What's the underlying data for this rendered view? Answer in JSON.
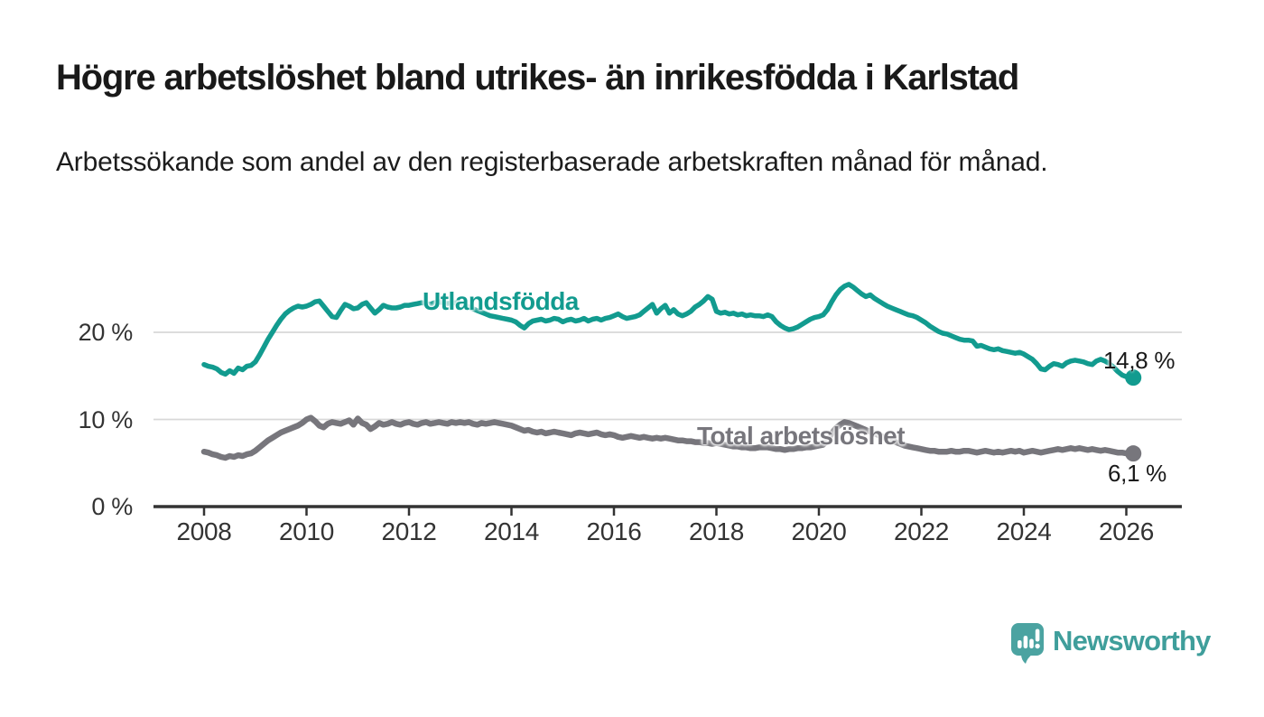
{
  "header": {
    "title": "Högre arbetslöshet bland utrikes- än inrikesfödda i Karlstad",
    "subtitle": "Arbetssökande som andel av den registerbaserade arbetskraften månad för månad."
  },
  "chart_data": {
    "type": "line",
    "title": "Högre arbetslöshet bland utrikes- än inrikesfödda i Karlstad",
    "xlabel": "",
    "ylabel": "Arbetssökande som andel av den registerbaserade arbetskraften",
    "x_start_year": 2008,
    "x_interval_months": 1,
    "x_tick_labels": [
      "2008",
      "2010",
      "2012",
      "2014",
      "2016",
      "2018",
      "2020",
      "2022",
      "2024",
      "2026"
    ],
    "y_ticks": [
      0,
      10,
      20
    ],
    "y_tick_labels": [
      "0 %",
      "10 %",
      "20 %"
    ],
    "ylim": [
      0,
      27.5
    ],
    "grid": "horizontal-only",
    "gridline_color": "#d8d8d8",
    "axis_color": "#333333",
    "legend_position": "inline-labels",
    "series": [
      {
        "name": "Utlandsfödda",
        "color": "#129b8f",
        "end_label": "14,8 %",
        "end_value": 14.8,
        "values": [
          16.3,
          16.1,
          16.0,
          15.8,
          15.4,
          15.2,
          15.6,
          15.3,
          15.9,
          15.7,
          16.1,
          16.2,
          16.6,
          17.4,
          18.3,
          19.2,
          20.0,
          20.8,
          21.5,
          22.1,
          22.5,
          22.8,
          23.0,
          22.9,
          23.0,
          23.2,
          23.5,
          23.6,
          23.0,
          22.4,
          21.8,
          21.7,
          22.5,
          23.2,
          23.0,
          22.7,
          22.8,
          23.2,
          23.4,
          22.8,
          22.2,
          22.6,
          23.1,
          22.9,
          22.8,
          22.8,
          22.9,
          23.1,
          23.1,
          23.2,
          23.3,
          23.4,
          23.3,
          23.2,
          23.4,
          23.5,
          23.4,
          23.3,
          23.4,
          23.4,
          23.3,
          23.1,
          22.9,
          22.7,
          22.5,
          22.3,
          22.1,
          21.9,
          21.8,
          21.7,
          21.6,
          21.5,
          21.4,
          21.2,
          20.8,
          20.5,
          21.0,
          21.3,
          21.4,
          21.5,
          21.3,
          21.4,
          21.6,
          21.5,
          21.2,
          21.4,
          21.5,
          21.3,
          21.4,
          21.6,
          21.3,
          21.5,
          21.6,
          21.4,
          21.6,
          21.7,
          21.9,
          22.1,
          21.8,
          21.6,
          21.7,
          21.8,
          22.0,
          22.4,
          22.8,
          23.2,
          22.2,
          22.7,
          23.1,
          22.2,
          22.6,
          22.1,
          21.9,
          22.1,
          22.4,
          22.9,
          23.2,
          23.6,
          24.1,
          23.8,
          22.4,
          22.2,
          22.3,
          22.1,
          22.2,
          22.0,
          22.1,
          21.9,
          22.0,
          21.9,
          21.9,
          21.8,
          22.0,
          21.8,
          21.2,
          20.8,
          20.5,
          20.3,
          20.4,
          20.6,
          20.9,
          21.2,
          21.5,
          21.7,
          21.8,
          22.0,
          22.6,
          23.5,
          24.3,
          24.9,
          25.3,
          25.5,
          25.2,
          24.8,
          24.4,
          24.1,
          24.3,
          23.9,
          23.6,
          23.3,
          23.0,
          22.8,
          22.6,
          22.4,
          22.2,
          22.0,
          21.9,
          21.7,
          21.4,
          21.1,
          20.7,
          20.4,
          20.1,
          19.9,
          19.8,
          19.6,
          19.4,
          19.2,
          19.1,
          19.1,
          19.0,
          18.4,
          18.5,
          18.3,
          18.1,
          18.0,
          18.1,
          17.9,
          17.8,
          17.7,
          17.6,
          17.7,
          17.5,
          17.2,
          16.9,
          16.4,
          15.8,
          15.7,
          16.1,
          16.4,
          16.3,
          16.1,
          16.5,
          16.7,
          16.8,
          16.7,
          16.6,
          16.4,
          16.3,
          16.7,
          16.9,
          16.7,
          16.4,
          16.0,
          15.5,
          15.1,
          14.9,
          14.8
        ]
      },
      {
        "name": "Total arbetslöshet",
        "color": "#77767c",
        "end_label": "6,1 %",
        "end_value": 6.1,
        "values": [
          6.3,
          6.2,
          6.0,
          5.9,
          5.7,
          5.6,
          5.8,
          5.7,
          5.9,
          5.8,
          6.0,
          6.1,
          6.4,
          6.8,
          7.2,
          7.6,
          7.9,
          8.2,
          8.5,
          8.7,
          8.9,
          9.1,
          9.3,
          9.6,
          10.0,
          10.2,
          9.8,
          9.3,
          9.1,
          9.5,
          9.7,
          9.6,
          9.5,
          9.7,
          9.9,
          9.4,
          10.1,
          9.6,
          9.4,
          8.9,
          9.2,
          9.6,
          9.4,
          9.5,
          9.7,
          9.5,
          9.4,
          9.6,
          9.7,
          9.5,
          9.4,
          9.6,
          9.7,
          9.5,
          9.6,
          9.7,
          9.6,
          9.5,
          9.7,
          9.6,
          9.7,
          9.6,
          9.7,
          9.5,
          9.4,
          9.6,
          9.5,
          9.6,
          9.7,
          9.6,
          9.5,
          9.4,
          9.3,
          9.1,
          8.9,
          8.7,
          8.8,
          8.6,
          8.5,
          8.6,
          8.4,
          8.5,
          8.6,
          8.5,
          8.4,
          8.3,
          8.2,
          8.4,
          8.5,
          8.4,
          8.3,
          8.4,
          8.5,
          8.3,
          8.2,
          8.3,
          8.2,
          8.0,
          7.9,
          8.0,
          8.1,
          8.0,
          7.9,
          8.0,
          7.9,
          7.8,
          7.9,
          7.8,
          7.9,
          7.8,
          7.7,
          7.6,
          7.6,
          7.5,
          7.5,
          7.4,
          7.4,
          7.3,
          7.3,
          7.2,
          7.3,
          7.2,
          7.1,
          7.0,
          6.9,
          6.9,
          6.8,
          6.8,
          6.7,
          6.7,
          6.8,
          6.8,
          6.8,
          6.7,
          6.6,
          6.6,
          6.5,
          6.6,
          6.6,
          6.7,
          6.7,
          6.8,
          6.8,
          6.9,
          7.0,
          7.1,
          7.6,
          8.4,
          9.0,
          9.4,
          9.7,
          9.6,
          9.4,
          9.2,
          9.0,
          8.8,
          8.6,
          8.4,
          8.2,
          8.0,
          7.8,
          7.6,
          7.4,
          7.2,
          7.0,
          6.9,
          6.8,
          6.7,
          6.6,
          6.5,
          6.4,
          6.4,
          6.3,
          6.3,
          6.3,
          6.4,
          6.3,
          6.3,
          6.4,
          6.4,
          6.3,
          6.2,
          6.3,
          6.4,
          6.3,
          6.2,
          6.3,
          6.2,
          6.3,
          6.4,
          6.3,
          6.4,
          6.2,
          6.3,
          6.4,
          6.3,
          6.2,
          6.3,
          6.4,
          6.5,
          6.6,
          6.5,
          6.6,
          6.7,
          6.6,
          6.7,
          6.6,
          6.5,
          6.6,
          6.5,
          6.4,
          6.5,
          6.4,
          6.3,
          6.2,
          6.2,
          6.1,
          6.1
        ]
      }
    ]
  },
  "footer": {
    "brand": "Newsworthy",
    "brand_text_color": "#3f9e9b",
    "brand_icon": "newsworthy-speech-bubble-bar-chart-icon",
    "brand_icon_color": "#4ba3a1"
  }
}
